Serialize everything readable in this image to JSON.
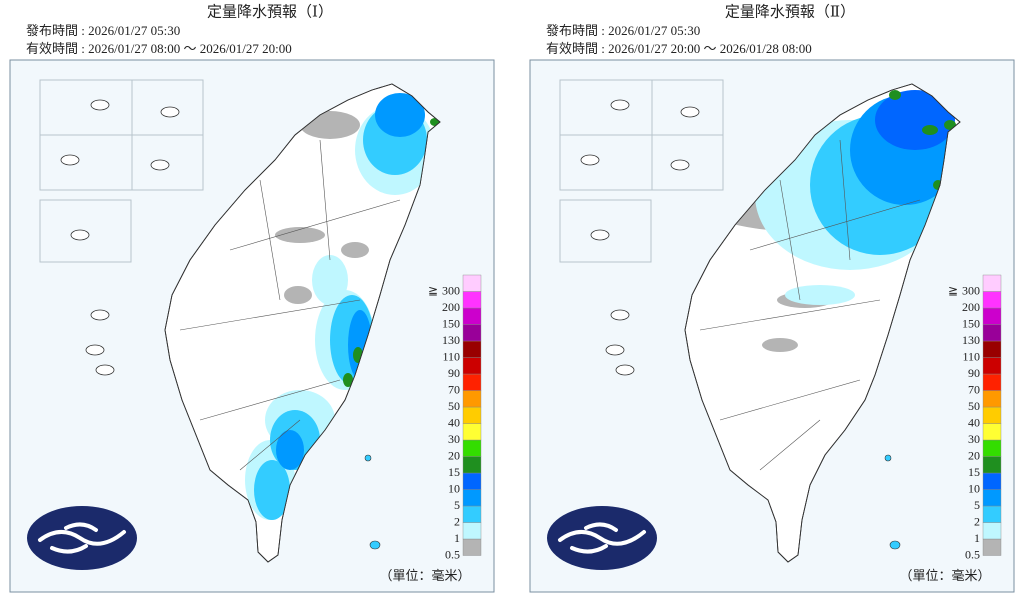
{
  "panels": [
    {
      "title": "定量降水預報（Ⅰ）",
      "issued": "發布時間 : 2026/01/27 05:30",
      "valid": "有效時間 : 2026/01/27 08:00 ～ 2026/01/27 20:00"
    },
    {
      "title": "定量降水預報（Ⅱ）",
      "issued": "發布時間 : 2026/01/27 05:30",
      "valid": "有效時間 : 2026/01/27 20:00 ～ 2026/01/28 08:00"
    }
  ],
  "legend": {
    "levels": [
      0.5,
      1,
      2,
      5,
      10,
      15,
      20,
      30,
      40,
      50,
      70,
      90,
      110,
      130,
      150,
      200,
      300
    ],
    "colors": [
      "#b4b4b4",
      "#bff7ff",
      "#33ccff",
      "#0099ff",
      "#0066ff",
      "#1f8f1f",
      "#33dd00",
      "#ffff33",
      "#ffcc00",
      "#ff9900",
      "#ff2200",
      "#cc0000",
      "#990000",
      "#990099",
      "#cc00cc",
      "#ff33ff",
      "#ffccff"
    ],
    "top_prefix": "≧",
    "unit": "（單位：毫米）"
  }
}
